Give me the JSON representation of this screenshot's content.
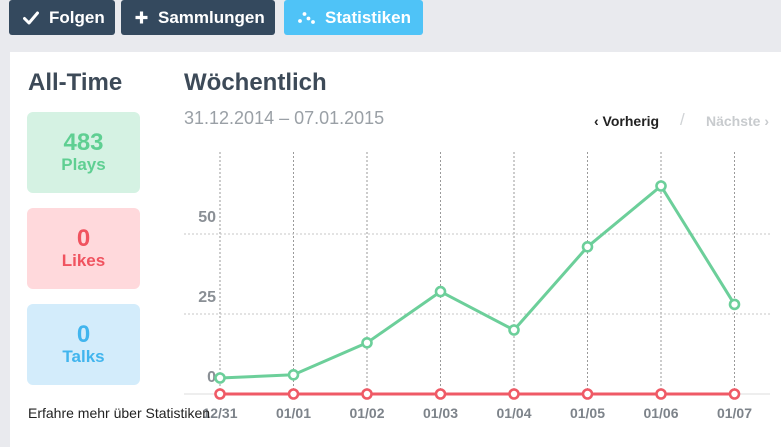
{
  "toolbar": {
    "follow_label": "Folgen",
    "collections_label": "Sammlungen",
    "stats_label": "Statistiken"
  },
  "alltime": {
    "title": "All-Time",
    "plays": {
      "value": "483",
      "label": "Plays"
    },
    "likes": {
      "value": "0",
      "label": "Likes"
    },
    "talks": {
      "value": "0",
      "label": "Talks"
    },
    "learn_more": "Erfahre mehr über Statistiken"
  },
  "weekly": {
    "title": "Wöchentlich",
    "date_range": "31.12.2014 – 07.01.2015",
    "prev_label": "‹ Vorherig",
    "separator": "/",
    "next_label": "Nächste ›"
  },
  "colors": {
    "plays": "#6ccf9a",
    "likes": "#ef5a66",
    "button_dark": "#34495e",
    "button_active": "#4fc3f7"
  },
  "chart_data": {
    "type": "line",
    "categories": [
      "12/31",
      "01/01",
      "01/02",
      "01/03",
      "01/04",
      "01/05",
      "01/06",
      "01/07"
    ],
    "yticks": [
      0,
      25,
      50
    ],
    "ylim": [
      0,
      75
    ],
    "grid": true,
    "series": [
      {
        "values": [
          5,
          6,
          16,
          32,
          20,
          46,
          65,
          28
        ],
        "color": "#6ccf9a"
      },
      {
        "values": [
          0,
          0,
          0,
          0,
          0,
          0,
          0,
          0
        ],
        "color": "#ef5a66"
      }
    ]
  }
}
